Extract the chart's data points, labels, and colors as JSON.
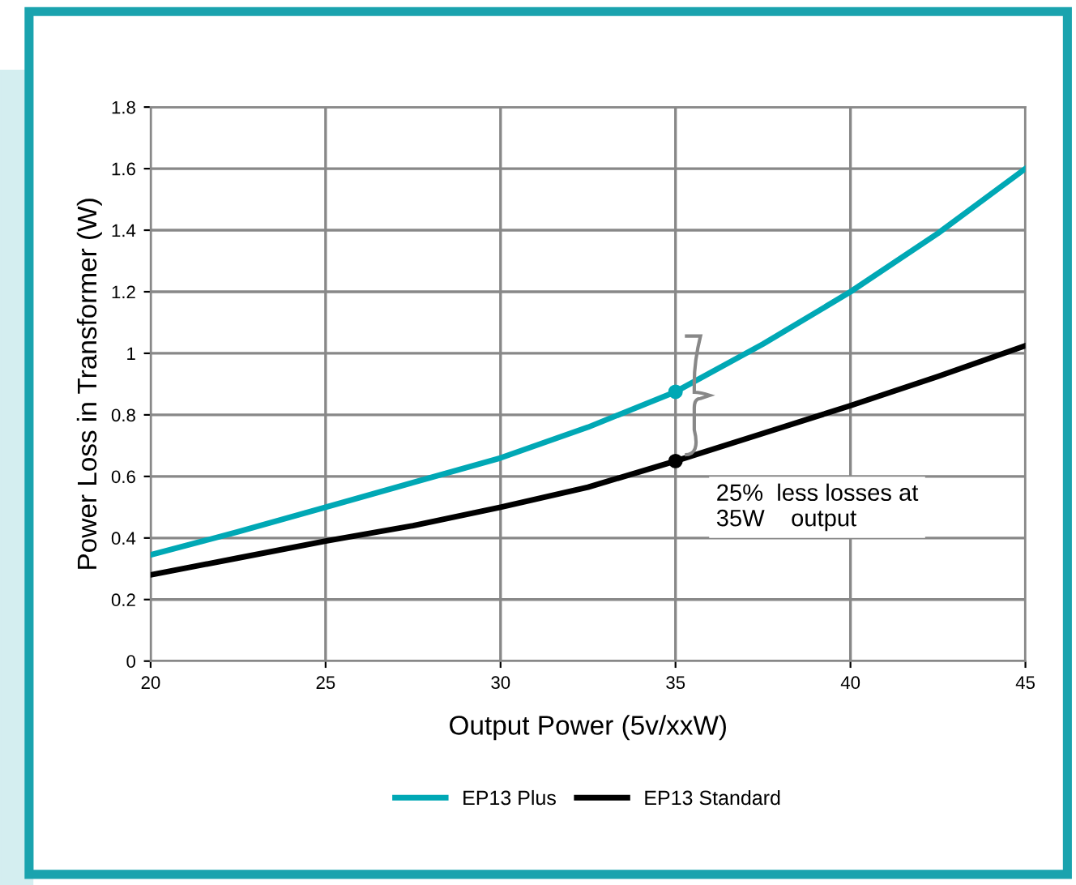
{
  "chart_data": {
    "type": "line",
    "xlabel": "Output Power (5v/xxW)",
    "ylabel": "Power Loss in Transformer (W)",
    "x": [
      20,
      22.5,
      25,
      27.5,
      30,
      32.5,
      35,
      37.5,
      40,
      42.5,
      45
    ],
    "series": [
      {
        "name": "EP13 Plus",
        "color": "#00a8b5",
        "values": [
          0.345,
          0.42,
          0.5,
          0.58,
          0.66,
          0.76,
          0.875,
          1.03,
          1.2,
          1.39,
          1.6
        ]
      },
      {
        "name": "EP13 Standard",
        "color": "#000000",
        "values": [
          0.28,
          0.335,
          0.39,
          0.44,
          0.5,
          0.565,
          0.65,
          0.74,
          0.83,
          0.925,
          1.025
        ]
      },
      {
        "type": "scatter",
        "marker": "circle",
        "x": [
          35,
          35
        ],
        "values": [
          0.875,
          0.65
        ],
        "colors": [
          "#00a8b5",
          "#000000"
        ]
      }
    ],
    "annotations": [
      {
        "text": "25%  less losses at\n35W    output",
        "x": 35,
        "y": 0.65
      }
    ],
    "xlim": [
      20,
      45
    ],
    "xticks": [
      20,
      25,
      30,
      35,
      40,
      45
    ],
    "ylim": [
      0,
      1.8
    ],
    "yticks": [
      0,
      0.2,
      0.4,
      0.6,
      0.8,
      1,
      1.2,
      1.4,
      1.6,
      1.8
    ],
    "grid": true,
    "legend": "bottom",
    "marker": "none",
    "line_style": "solid"
  }
}
